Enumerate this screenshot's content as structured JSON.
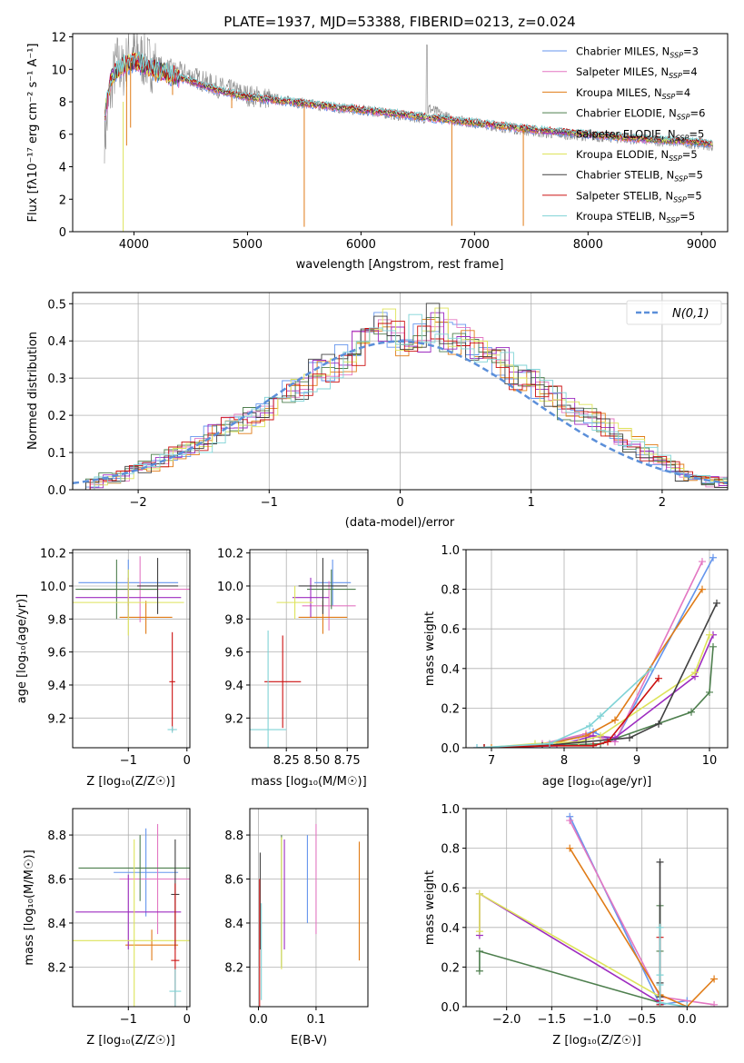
{
  "chart_data": [
    {
      "id": "spectrum",
      "type": "line",
      "title": "PLATE=1937, MJD=53388, FIBERID=0213, z=0.024",
      "xlabel": "wavelength [Angstrom, rest frame]",
      "ylabel": "Flux [fλ10⁻¹⁷ erg cm⁻² s⁻¹ A⁻¹]",
      "xlim": [
        3460,
        9230
      ],
      "ylim": [
        0,
        12.2
      ],
      "xticks": [
        4000,
        5000,
        6000,
        7000,
        8000,
        9000
      ],
      "yticks": [
        0,
        2,
        4,
        6,
        8,
        10,
        12
      ],
      "legend_position": "top-right",
      "observed": {
        "x": [
          3750,
          3800,
          3850,
          3900,
          3950,
          4000,
          4100,
          4200,
          4300,
          4400,
          4500,
          4600,
          4700,
          4800,
          4900,
          5000,
          5200,
          5400,
          5600,
          5800,
          6000,
          6200,
          6400,
          6560,
          6600,
          6800,
          7000,
          7200,
          7400,
          7600,
          7800,
          8000,
          8200,
          8400,
          8600,
          8800,
          9000,
          9100
        ],
        "y": [
          6.0,
          9.0,
          10.5,
          9.8,
          10.8,
          11.0,
          10.5,
          10.2,
          10.0,
          9.8,
          9.6,
          9.3,
          9.0,
          8.8,
          8.6,
          8.4,
          8.2,
          8.0,
          7.8,
          7.6,
          7.5,
          7.3,
          7.1,
          7.0,
          7.6,
          6.9,
          6.7,
          6.5,
          6.3,
          6.1,
          6.0,
          5.9,
          5.8,
          5.7,
          5.6,
          5.5,
          5.4,
          5.3
        ]
      },
      "model_continuum": {
        "x": [
          3750,
          3800,
          3900,
          4000,
          4200,
          4400,
          4600,
          4800,
          5000,
          5500,
          6000,
          6500,
          7000,
          7500,
          8000,
          8500,
          9000,
          9100
        ],
        "y": [
          7.5,
          9.5,
          10.2,
          10.5,
          9.9,
          9.5,
          9.0,
          8.6,
          8.3,
          7.9,
          7.5,
          7.1,
          6.7,
          6.3,
          6.0,
          5.7,
          5.5,
          5.4
        ]
      },
      "series": [
        {
          "name": "Chabrier MILES, N_SSP=3",
          "color": "#6495ed"
        },
        {
          "name": "Salpeter MILES, N_SSP=4",
          "color": "#e377c2"
        },
        {
          "name": "Kroupa MILES, N_SSP=4",
          "color": "#e07b16"
        },
        {
          "name": "Chabrier ELODIE, N_SSP=6",
          "color": "#4e7f4e"
        },
        {
          "name": "Salpeter ELODIE, N_SSP=5",
          "color": "#9d2cc0"
        },
        {
          "name": "Kroupa ELODIE, N_SSP=5",
          "color": "#dde35a"
        },
        {
          "name": "Chabrier STELIB, N_SSP=5",
          "color": "#404040"
        },
        {
          "name": "Salpeter STELIB, N_SSP=5",
          "color": "#cc1010"
        },
        {
          "name": "Kroupa STELIB, N_SSP=5",
          "color": "#7fd3d6"
        }
      ]
    },
    {
      "id": "residuals",
      "type": "bar",
      "xlabel": "(data-model)/error",
      "ylabel": "Normed distribution",
      "xlim": [
        -2.5,
        2.5
      ],
      "ylim": [
        0,
        0.53
      ],
      "xticks": [
        -2,
        -1,
        0,
        1,
        2
      ],
      "yticks": [
        0.0,
        0.1,
        0.2,
        0.3,
        0.4,
        0.5
      ],
      "legend": "N(0,1)",
      "legend_position": "top-right",
      "gaussian_color": "#5b8fd9",
      "bin_width": 0.1,
      "bin_start": -2.5,
      "hist_mean": [
        0.01,
        0.02,
        0.03,
        0.04,
        0.05,
        0.06,
        0.08,
        0.1,
        0.11,
        0.12,
        0.15,
        0.17,
        0.18,
        0.2,
        0.22,
        0.25,
        0.27,
        0.28,
        0.31,
        0.33,
        0.35,
        0.38,
        0.45,
        0.44,
        0.41,
        0.42,
        0.41,
        0.45,
        0.41,
        0.42,
        0.39,
        0.37,
        0.34,
        0.3,
        0.29,
        0.27,
        0.25,
        0.22,
        0.2,
        0.19,
        0.17,
        0.14,
        0.12,
        0.1,
        0.08,
        0.06,
        0.04,
        0.03,
        0.02,
        0.02
      ]
    },
    {
      "id": "age_vs_Z",
      "type": "scatter",
      "xlabel": "Z [log₁₀(Z/Z☉)]",
      "ylabel": "age  [log₁₀(age/yr)]",
      "xlim": [
        -1.95,
        0.05
      ],
      "ylim": [
        9.02,
        10.22
      ],
      "xticks": [
        -1,
        0
      ],
      "yticks": [
        9.2,
        9.4,
        9.6,
        9.8,
        10.0,
        10.2
      ],
      "errorbars": [
        {
          "series": 0,
          "x": -1.0,
          "xerr": 0.85,
          "y": 10.02,
          "yerr": 0.14
        },
        {
          "series": 1,
          "x": -0.8,
          "xerr": 1.0,
          "y": 9.98,
          "yerr": 0.2
        },
        {
          "series": 2,
          "x": -0.7,
          "xerr": 0.45,
          "y": 9.81,
          "yerr": 0.1
        },
        {
          "series": 3,
          "x": -1.2,
          "xerr": 0.7,
          "y": 9.98,
          "yerr": 0.18
        },
        {
          "series": 4,
          "x": -1.0,
          "xerr": 0.9,
          "y": 9.93,
          "yerr": 0.12
        },
        {
          "series": 5,
          "x": -1.0,
          "xerr": 0.95,
          "y": 9.9,
          "yerr": 0.2
        },
        {
          "series": 6,
          "x": -0.5,
          "xerr": 0.35,
          "y": 10.0,
          "yerr": 0.17
        },
        {
          "series": 7,
          "x": -0.25,
          "xerr": 0.05,
          "y": 9.42,
          "yerr": 0.3
        },
        {
          "series": 8,
          "x": -0.25,
          "xerr": 0.08,
          "y": 9.13,
          "yerr": 0.02
        }
      ]
    },
    {
      "id": "age_vs_mass",
      "type": "scatter",
      "xlabel": "mass [log₁₀(M/M☉)]",
      "ylabel": "",
      "xlim": [
        7.95,
        8.92
      ],
      "ylim": [
        9.02,
        10.22
      ],
      "xticks": [
        8.25,
        8.5,
        8.75
      ],
      "yticks": [
        9.2,
        9.4,
        9.6,
        9.8,
        10.0,
        10.2
      ],
      "errorbars": [
        {
          "series": 0,
          "x": 8.63,
          "xerr": 0.15,
          "y": 10.02,
          "yerr": 0.14
        },
        {
          "series": 1,
          "x": 8.6,
          "xerr": 0.22,
          "y": 9.88,
          "yerr": 0.15
        },
        {
          "series": 2,
          "x": 8.55,
          "xerr": 0.2,
          "y": 9.81,
          "yerr": 0.1
        },
        {
          "series": 3,
          "x": 8.62,
          "xerr": 0.2,
          "y": 9.98,
          "yerr": 0.12
        },
        {
          "series": 4,
          "x": 8.45,
          "xerr": 0.15,
          "y": 9.93,
          "yerr": 0.12
        },
        {
          "series": 5,
          "x": 8.32,
          "xerr": 0.15,
          "y": 9.9,
          "yerr": 0.1
        },
        {
          "series": 6,
          "x": 8.55,
          "xerr": 0.2,
          "y": 10.0,
          "yerr": 0.17
        },
        {
          "series": 7,
          "x": 8.22,
          "xerr": 0.15,
          "y": 9.42,
          "yerr": 0.28
        },
        {
          "series": 8,
          "x": 8.1,
          "xerr": 0.15,
          "y": 9.13,
          "yerr": 0.6
        }
      ]
    },
    {
      "id": "mass_weight_vs_age",
      "type": "line",
      "xlabel": "age  [log₁₀(age/yr)]",
      "ylabel": "mass weight",
      "xlim": [
        6.65,
        10.25
      ],
      "ylim": [
        0,
        1.0
      ],
      "xticks": [
        7,
        8,
        9,
        10
      ],
      "yticks": [
        0.0,
        0.2,
        0.4,
        0.6,
        0.8,
        1.0
      ],
      "series": [
        {
          "x": [
            6.8,
            7.7,
            8.4,
            8.7,
            10.05
          ],
          "y": [
            0.0,
            0.01,
            0.08,
            0.03,
            0.96
          ]
        },
        {
          "x": [
            6.9,
            7.7,
            8.3,
            8.7,
            9.9
          ],
          "y": [
            0.0,
            0.02,
            0.07,
            0.03,
            0.94
          ]
        },
        {
          "x": [
            7.0,
            7.8,
            8.3,
            8.7,
            9.9
          ],
          "y": [
            0.0,
            0.02,
            0.06,
            0.14,
            0.8
          ]
        },
        {
          "x": [
            6.9,
            7.8,
            8.5,
            9.75,
            10.0,
            10.05
          ],
          "y": [
            0.0,
            0.01,
            0.02,
            0.18,
            0.28,
            0.51
          ]
        },
        {
          "x": [
            6.9,
            7.9,
            8.4,
            8.7,
            9.8,
            10.05
          ],
          "y": [
            0.0,
            0.01,
            0.06,
            0.05,
            0.36,
            0.57
          ]
        },
        {
          "x": [
            6.9,
            7.6,
            8.2,
            8.5,
            9.8,
            10.0
          ],
          "y": [
            0.0,
            0.02,
            0.03,
            0.06,
            0.38,
            0.57
          ]
        },
        {
          "x": [
            6.9,
            7.7,
            8.3,
            8.9,
            9.3,
            10.1
          ],
          "y": [
            0.0,
            0.01,
            0.03,
            0.05,
            0.12,
            0.73
          ]
        },
        {
          "x": [
            6.9,
            7.8,
            8.4,
            8.6,
            9.3
          ],
          "y": [
            0.0,
            0.01,
            0.01,
            0.03,
            0.35
          ]
        },
        {
          "x": [
            6.8,
            7.8,
            8.35,
            8.5,
            9.2
          ],
          "y": [
            0.0,
            0.02,
            0.11,
            0.16,
            0.4
          ]
        }
      ]
    },
    {
      "id": "mass_vs_Z",
      "type": "scatter",
      "xlabel": "Z [log₁₀(Z/Z☉)]",
      "ylabel": "mass [log₁₀(M/M☉)]",
      "xlim": [
        -1.95,
        0.05
      ],
      "ylim": [
        8.02,
        8.92
      ],
      "xticks": [
        -1,
        0
      ],
      "yticks": [
        8.2,
        8.4,
        8.6,
        8.8
      ],
      "errorbars": [
        {
          "series": 0,
          "x": -0.7,
          "xerr": 0.55,
          "y": 8.63,
          "yerr": 0.2
        },
        {
          "series": 1,
          "x": -0.5,
          "xerr": 0.65,
          "y": 8.6,
          "yerr": 0.25
        },
        {
          "series": 2,
          "x": -0.6,
          "xerr": 0.45,
          "y": 8.3,
          "yerr": 0.07
        },
        {
          "series": 3,
          "x": -0.8,
          "xerr": 1.05,
          "y": 8.65,
          "yerr": 0.15
        },
        {
          "series": 4,
          "x": -1.0,
          "xerr": 0.9,
          "y": 8.45,
          "yerr": 0.17
        },
        {
          "series": 5,
          "x": -0.9,
          "xerr": 1.05,
          "y": 8.32,
          "yerr": 0.46
        },
        {
          "series": 6,
          "x": -0.2,
          "xerr": 0.07,
          "y": 8.53,
          "yerr": 0.25
        },
        {
          "series": 7,
          "x": -0.2,
          "xerr": 0.07,
          "y": 8.23,
          "yerr": 0.35
        },
        {
          "series": 8,
          "x": -0.2,
          "xerr": 0.1,
          "y": 8.09,
          "yerr": 0.1
        }
      ]
    },
    {
      "id": "mass_vs_ebv",
      "type": "scatter",
      "xlabel": "E(B-V)",
      "ylabel": "",
      "xlim": [
        -0.015,
        0.19
      ],
      "ylim": [
        8.02,
        8.92
      ],
      "xticks": [
        0.0,
        0.1
      ],
      "yticks": [
        8.2,
        8.4,
        8.6,
        8.8
      ],
      "errorbars": [
        {
          "series": 0,
          "x": 0.085,
          "y": 8.6,
          "yerr": 0.2
        },
        {
          "series": 1,
          "x": 0.1,
          "y": 8.6,
          "yerr": 0.25
        },
        {
          "series": 2,
          "x": 0.175,
          "y": 8.5,
          "yerr": 0.27
        },
        {
          "series": 3,
          "x": 0.04,
          "y": 8.5,
          "yerr": 0.3
        },
        {
          "series": 4,
          "x": 0.045,
          "y": 8.53,
          "yerr": 0.25
        },
        {
          "series": 5,
          "x": 0.04,
          "y": 8.49,
          "yerr": 0.3
        },
        {
          "series": 6,
          "x": 0.003,
          "y": 8.5,
          "yerr": 0.22
        },
        {
          "series": 7,
          "x": 0.002,
          "y": 8.3,
          "yerr": 0.3
        },
        {
          "series": 8,
          "x": 0.005,
          "y": 8.27,
          "yerr": 0.22
        }
      ]
    },
    {
      "id": "mass_weight_vs_Z",
      "type": "line",
      "xlabel": "Z [log₁₀(Z/Z☉)]",
      "ylabel": "mass weight",
      "xlim": [
        -2.45,
        0.45
      ],
      "ylim": [
        0,
        1.0
      ],
      "xticks": [
        -2.0,
        -1.5,
        -1.0,
        -0.5,
        0.0
      ],
      "yticks": [
        0.0,
        0.2,
        0.4,
        0.6,
        0.8,
        1.0
      ],
      "series": [
        {
          "x": [
            -1.3,
            -0.3,
            0.0
          ],
          "y": [
            0.96,
            0.01,
            0.03
          ]
        },
        {
          "x": [
            -1.3,
            -0.3,
            0.3
          ],
          "y": [
            0.94,
            0.05,
            0.01
          ]
        },
        {
          "x": [
            -1.3,
            -0.3,
            0.0,
            0.3
          ],
          "y": [
            0.8,
            0.06,
            0.0,
            0.14
          ]
        },
        {
          "x": [
            -2.3,
            -2.3,
            -0.3,
            -0.3,
            -0.3
          ],
          "y": [
            0.18,
            0.28,
            0.02,
            0.51,
            0.28
          ]
        },
        {
          "x": [
            -2.3,
            -2.3,
            -0.3,
            -0.3
          ],
          "y": [
            0.36,
            0.57,
            0.02,
            0.05
          ]
        },
        {
          "x": [
            -2.3,
            -2.3,
            -0.3,
            -0.3
          ],
          "y": [
            0.38,
            0.57,
            0.05,
            0.0
          ]
        },
        {
          "x": [
            -0.3,
            -0.3,
            -0.3,
            -0.3
          ],
          "y": [
            0.73,
            0.12,
            0.05,
            0.03
          ]
        },
        {
          "x": [
            -0.3,
            -0.3,
            -0.3
          ],
          "y": [
            0.35,
            0.03,
            0.01
          ]
        },
        {
          "x": [
            -0.3,
            -0.3,
            -0.3,
            -0.3,
            0.0
          ],
          "y": [
            0.4,
            0.16,
            0.11,
            0.02,
            0.0
          ]
        }
      ]
    }
  ]
}
